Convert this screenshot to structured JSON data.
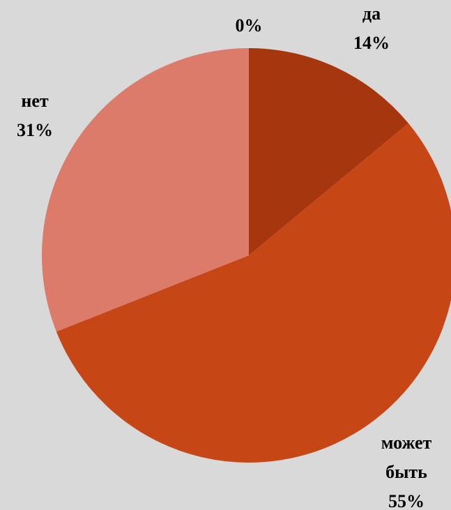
{
  "chart_data": {
    "type": "pie",
    "categories": [
      "да",
      "может быть",
      "нет",
      null
    ],
    "values": [
      14,
      55,
      31,
      0
    ],
    "value_labels": [
      "14%",
      "55%",
      "31%",
      "0%"
    ],
    "colors": [
      "#a5360e",
      "#c64615",
      "#dc7b6a",
      "#a5360e"
    ]
  }
}
